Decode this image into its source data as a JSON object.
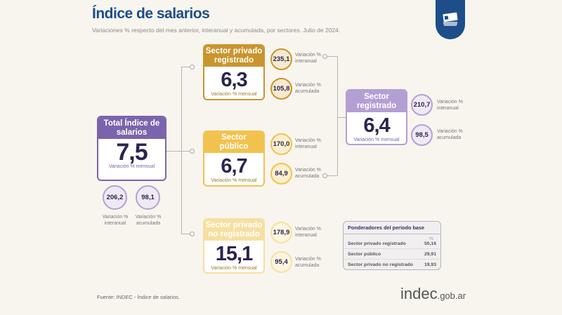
{
  "header": {
    "title": "Índice de salarios",
    "subtitle": "Variaciones % respecto del mes anterior, interanual y acumulada, por sectores. Julio de 2024."
  },
  "total": {
    "title": "Total Índice de salarios",
    "value": "7,5",
    "sub": "Variación % mensual",
    "interanual": "206,2",
    "acumulada": "98,1",
    "interanual_label": "Variación % interanual",
    "acumulada_label": "Variación % acumulada"
  },
  "privado_registrado": {
    "title": "Sector privado registrado",
    "value": "6,3",
    "sub": "Variación % mensual",
    "interanual": "235,1",
    "acumulada": "105,8",
    "interanual_label": "Variación % interanual",
    "acumulada_label": "Variación % acumulada"
  },
  "publico": {
    "title": "Sector público",
    "value": "6,7",
    "sub": "Variación % mensual",
    "interanual": "170,0",
    "acumulada": "84,9",
    "interanual_label": "Variación % interanual",
    "acumulada_label": "Variación % acumulada"
  },
  "no_registrado": {
    "title": "Sector privado no registrado",
    "value": "15,1",
    "sub": "Variación % mensual",
    "interanual": "178,9",
    "acumulada": "95,4",
    "interanual_label": "Variación % interanual",
    "acumulada_label": "Variación % acumulada"
  },
  "registrado": {
    "title": "Sector registrado",
    "value": "6,4",
    "sub": "Variación % mensual",
    "interanual": "210,7",
    "acumulada": "98,5",
    "interanual_label": "Variación % interanual",
    "acumulada_label": "Variación % acumulada"
  },
  "table": {
    "title": "Ponderadores del período base",
    "unit": "%",
    "rows": [
      {
        "label": "Sector privado registrado",
        "value": "50,16"
      },
      {
        "label": "Sector público",
        "value": "29,91"
      },
      {
        "label": "Sector privado no registrado",
        "value": "19,93"
      }
    ]
  },
  "footer": {
    "source": "Fuente: INDEC - Índice de salarios.",
    "logo_main": "indec",
    "logo_suffix": ".gob.ar"
  },
  "colors": {
    "title": "#1d4e89",
    "gold": "#c9952e",
    "yellow": "#f2c24e",
    "light_yellow": "#f6e0a0",
    "purple": "#7b64ab",
    "light_purple": "#b49fd4"
  }
}
